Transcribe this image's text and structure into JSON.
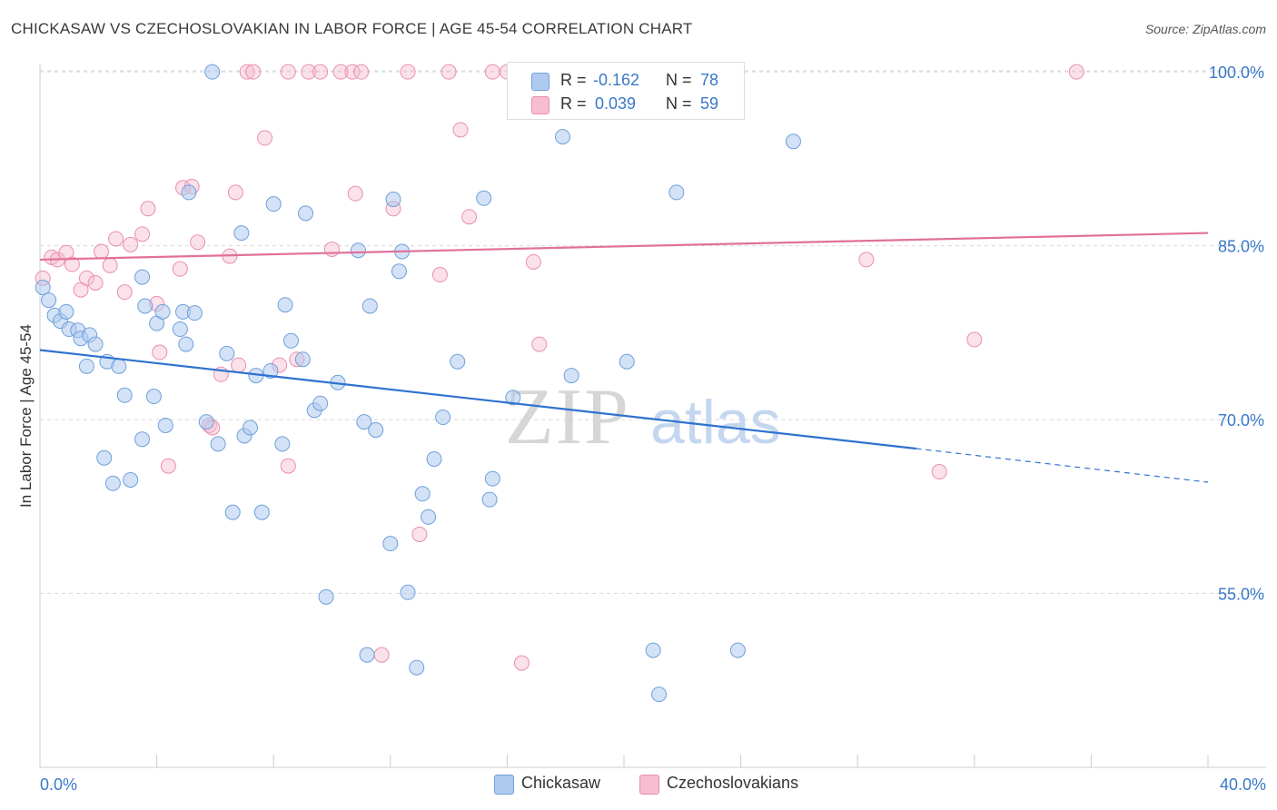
{
  "header": {
    "title": "CHICKASAW VS CZECHOSLOVAKIAN IN LABOR FORCE | AGE 45-54 CORRELATION CHART",
    "source": "Source: ZipAtlas.com"
  },
  "watermark": {
    "zip": "ZIP",
    "atlas": "atlas"
  },
  "legend": {
    "r_label": "R =",
    "n_label": "N =",
    "rows": [
      {
        "r": "-0.162",
        "n": "78"
      },
      {
        "r": "0.039",
        "n": "59"
      }
    ]
  },
  "colors": {
    "blue_fill": "#aecbef",
    "blue_stroke": "#6fa0db",
    "blue_line": "#2f72d0",
    "pink_fill": "#f7bdd0",
    "pink_stroke": "#ea8fae",
    "pink_line": "#e2709a",
    "tick_text": "#3a78c8",
    "grid": "#d9d9d9"
  },
  "chart_data": {
    "type": "scatter",
    "title": "CHICKASAW VS CZECHOSLOVAKIAN IN LABOR FORCE | AGE 45-54 CORRELATION CHART",
    "xlabel": "",
    "ylabel": "In Labor Force | Age 45-54",
    "xlim": [
      0,
      40
    ],
    "ylim": [
      40,
      101.5
    ],
    "x_tick_labels": [
      "0.0%",
      "40.0%"
    ],
    "y_ticks": [
      55,
      70,
      85,
      100
    ],
    "y_tick_labels": [
      "55.0%",
      "70.0%",
      "85.0%",
      "100.0%"
    ],
    "grid": true,
    "legend_position": "top-center",
    "series": [
      {
        "name": "Chickasaw",
        "color": "#aecbef",
        "r": -0.162,
        "n": 78,
        "trend": {
          "x0": 0,
          "y0": 76.0,
          "x1": 30,
          "y1": 67.5,
          "dash_to_x": 40,
          "dash_to_y": 64.6
        },
        "points": [
          [
            0.1,
            81.4
          ],
          [
            0.3,
            80.3
          ],
          [
            0.5,
            79.0
          ],
          [
            0.7,
            78.5
          ],
          [
            0.9,
            79.3
          ],
          [
            1.0,
            77.8
          ],
          [
            1.3,
            77.7
          ],
          [
            1.4,
            77.0
          ],
          [
            1.7,
            77.3
          ],
          [
            1.9,
            76.5
          ],
          [
            2.3,
            75.0
          ],
          [
            2.7,
            74.6
          ],
          [
            1.6,
            74.6
          ],
          [
            2.9,
            72.1
          ],
          [
            3.5,
            68.3
          ],
          [
            2.2,
            66.7
          ],
          [
            2.5,
            64.5
          ],
          [
            3.1,
            64.8
          ],
          [
            3.5,
            82.3
          ],
          [
            3.6,
            79.8
          ],
          [
            4.0,
            78.3
          ],
          [
            4.2,
            79.3
          ],
          [
            3.9,
            72.0
          ],
          [
            4.3,
            69.5
          ],
          [
            4.8,
            77.8
          ],
          [
            4.9,
            79.3
          ],
          [
            5.0,
            76.5
          ],
          [
            5.1,
            89.6
          ],
          [
            5.3,
            79.2
          ],
          [
            5.7,
            69.8
          ],
          [
            5.9,
            100.0
          ],
          [
            6.1,
            67.9
          ],
          [
            6.4,
            75.7
          ],
          [
            6.6,
            62.0
          ],
          [
            6.9,
            86.1
          ],
          [
            7.0,
            68.6
          ],
          [
            7.2,
            69.3
          ],
          [
            7.4,
            73.8
          ],
          [
            7.6,
            62.0
          ],
          [
            7.9,
            74.2
          ],
          [
            8.0,
            88.6
          ],
          [
            8.3,
            67.9
          ],
          [
            8.4,
            79.9
          ],
          [
            8.6,
            76.8
          ],
          [
            9.0,
            75.2
          ],
          [
            9.1,
            87.8
          ],
          [
            9.4,
            70.8
          ],
          [
            9.6,
            71.4
          ],
          [
            9.8,
            54.7
          ],
          [
            10.2,
            73.2
          ],
          [
            10.9,
            84.6
          ],
          [
            11.1,
            69.8
          ],
          [
            11.3,
            79.8
          ],
          [
            11.5,
            69.1
          ],
          [
            12.0,
            59.3
          ],
          [
            12.1,
            89.0
          ],
          [
            12.3,
            82.8
          ],
          [
            12.4,
            84.5
          ],
          [
            12.6,
            55.1
          ],
          [
            12.9,
            48.6
          ],
          [
            13.1,
            63.6
          ],
          [
            13.3,
            61.6
          ],
          [
            13.5,
            66.6
          ],
          [
            13.8,
            70.2
          ],
          [
            14.3,
            75.0
          ],
          [
            15.2,
            89.1
          ],
          [
            15.4,
            63.1
          ],
          [
            15.5,
            64.9
          ],
          [
            16.2,
            71.9
          ],
          [
            17.9,
            94.4
          ],
          [
            18.2,
            73.8
          ],
          [
            20.1,
            75.0
          ],
          [
            21.0,
            50.1
          ],
          [
            21.2,
            46.3
          ],
          [
            21.8,
            89.6
          ],
          [
            23.9,
            50.1
          ],
          [
            25.8,
            94.0
          ],
          [
            11.2,
            49.7
          ]
        ]
      },
      {
        "name": "Czechoslovakians",
        "color": "#f7bdd0",
        "r": 0.039,
        "n": 59,
        "trend": {
          "x0": 0,
          "y0": 83.8,
          "x1": 40,
          "y1": 86.1
        },
        "points": [
          [
            0.1,
            82.2
          ],
          [
            0.4,
            84.0
          ],
          [
            0.6,
            83.8
          ],
          [
            0.9,
            84.4
          ],
          [
            1.1,
            83.4
          ],
          [
            1.4,
            81.2
          ],
          [
            1.6,
            82.2
          ],
          [
            1.9,
            81.8
          ],
          [
            2.1,
            84.5
          ],
          [
            2.4,
            83.3
          ],
          [
            2.6,
            85.6
          ],
          [
            2.9,
            81.0
          ],
          [
            3.1,
            85.1
          ],
          [
            3.5,
            86.0
          ],
          [
            3.7,
            88.2
          ],
          [
            4.0,
            80.0
          ],
          [
            4.1,
            75.8
          ],
          [
            4.4,
            66.0
          ],
          [
            4.8,
            83.0
          ],
          [
            4.9,
            90.0
          ],
          [
            5.2,
            90.1
          ],
          [
            5.4,
            85.3
          ],
          [
            5.8,
            69.5
          ],
          [
            5.9,
            69.3
          ],
          [
            6.2,
            73.9
          ],
          [
            6.5,
            84.1
          ],
          [
            6.8,
            74.7
          ],
          [
            6.7,
            89.6
          ],
          [
            7.1,
            100.0
          ],
          [
            7.3,
            100.0
          ],
          [
            7.7,
            94.3
          ],
          [
            8.2,
            74.7
          ],
          [
            8.5,
            100.0
          ],
          [
            8.5,
            66.0
          ],
          [
            8.8,
            75.2
          ],
          [
            9.2,
            100.0
          ],
          [
            9.6,
            100.0
          ],
          [
            10.0,
            84.7
          ],
          [
            10.3,
            100.0
          ],
          [
            10.7,
            100.0
          ],
          [
            10.8,
            89.5
          ],
          [
            11.0,
            100.0
          ],
          [
            11.7,
            49.7
          ],
          [
            12.1,
            88.2
          ],
          [
            12.6,
            100.0
          ],
          [
            13.0,
            60.1
          ],
          [
            13.7,
            82.5
          ],
          [
            14.0,
            100.0
          ],
          [
            14.4,
            95.0
          ],
          [
            14.7,
            87.5
          ],
          [
            15.5,
            100.0
          ],
          [
            16.0,
            100.0
          ],
          [
            16.5,
            49.0
          ],
          [
            16.9,
            83.6
          ],
          [
            17.1,
            76.5
          ],
          [
            28.3,
            83.8
          ],
          [
            30.8,
            65.5
          ],
          [
            32.0,
            76.9
          ],
          [
            35.5,
            100.0
          ]
        ]
      }
    ]
  }
}
